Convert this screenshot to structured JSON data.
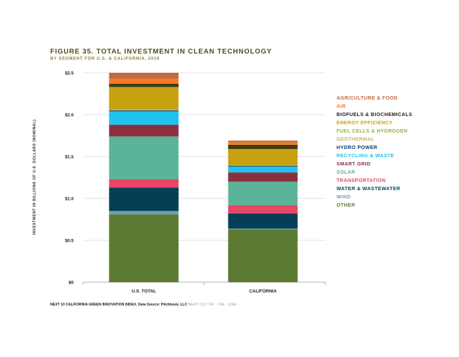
{
  "title": "FIGURE 35. TOTAL INVESTMENT IN CLEAN TECHNOLOGY",
  "subtitle": "BY SEGMENT FOR U.S. & CALIFORNIA, 2016",
  "footer": {
    "source": "NEXT 10 CALIFORNIA GREEN INNOVATION INDEX. Data Source: Pitchbook, LLC",
    "tag": "NEXT 10 / SF · CA · USA"
  },
  "chart_data": {
    "type": "bar",
    "stacked": true,
    "categories": [
      "U.S. TOTAL",
      "CALIFORNIA"
    ],
    "ylabel": "INVESTMENT IN BILLIONS OF U.S. DOLLARS (NOMINAL)",
    "ylim": [
      0,
      2.5
    ],
    "yticks": [
      {
        "value": 0,
        "label": "$0"
      },
      {
        "value": 0.5,
        "label": "$0.5"
      },
      {
        "value": 1.0,
        "label": "$1.0"
      },
      {
        "value": 1.5,
        "label": "$1.5"
      },
      {
        "value": 2.0,
        "label": "$2.0"
      },
      {
        "value": 2.5,
        "label": "$2.5"
      }
    ],
    "grid": true,
    "legend_position": "right",
    "series": [
      {
        "name": "OTHER",
        "color": "#5c7a32",
        "values": [
          0.81,
          0.63
        ]
      },
      {
        "name": "WIND",
        "color": "#6a9fb5",
        "values": [
          0.04,
          0.01
        ]
      },
      {
        "name": "WATER & WASTEWATER",
        "color": "#053f55",
        "values": [
          0.28,
          0.18
        ]
      },
      {
        "name": "TRANSPORTATION",
        "color": "#e84667",
        "values": [
          0.1,
          0.1
        ]
      },
      {
        "name": "SOLAR",
        "color": "#5bb499",
        "values": [
          0.51,
          0.28
        ]
      },
      {
        "name": "SMART GRID",
        "color": "#8b2f3f",
        "values": [
          0.14,
          0.11
        ]
      },
      {
        "name": "RECYCLING & WASTE",
        "color": "#1ec3ef",
        "values": [
          0.16,
          0.07
        ]
      },
      {
        "name": "HYDRO POWER",
        "color": "#0b3a68",
        "values": [
          0.01,
          0.01
        ]
      },
      {
        "name": "GEOTHERMAL",
        "color": "#c9b15d",
        "values": [
          0.01,
          0.01
        ]
      },
      {
        "name": "FUEL CELLS & HYDROGEN",
        "color": "#8fb33a",
        "values": [
          0.01,
          0.0
        ]
      },
      {
        "name": "ENERGY EFFICIENCY",
        "color": "#c7a10f",
        "values": [
          0.26,
          0.19
        ]
      },
      {
        "name": "BIOFUELS & BIOCHEMICALS",
        "color": "#3e3d12",
        "values": [
          0.04,
          0.05
        ]
      },
      {
        "name": "AIR",
        "color": "#f47b20",
        "values": [
          0.06,
          0.03
        ]
      },
      {
        "name": "AGRICULTURE & FOOD",
        "color": "#c06b3e",
        "values": [
          0.07,
          0.02
        ]
      }
    ],
    "legend_order": [
      "AGRICULTURE & FOOD",
      "AIR",
      "BIOFUELS & BIOCHEMICALS",
      "ENERGY EFFICIENCY",
      "FUEL CELLS & HYDROGEN",
      "GEOTHERMAL",
      "HYDRO POWER",
      "RECYCLING & WASTE",
      "SMART GRID",
      "SOLAR",
      "TRANSPORTATION",
      "WATER & WASTEWATER",
      "WIND",
      "OTHER"
    ]
  }
}
